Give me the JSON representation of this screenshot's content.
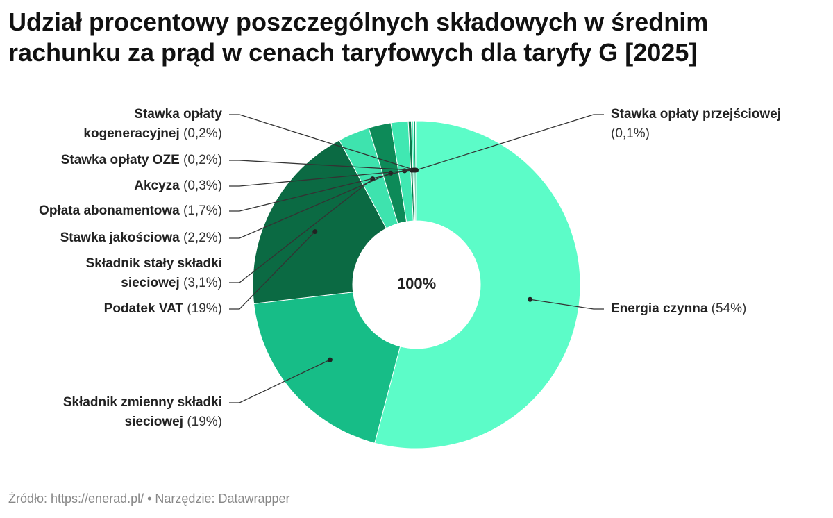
{
  "chart_data": {
    "type": "donut",
    "title": "Udział procentowy poszczególnych składowych w średnim rachunku za prąd w cenach taryfowych dla taryfy G [2025]",
    "center_label": "100%",
    "categories": [
      "Energia czynna",
      "Składnik zmienny składki sieciowej",
      "Podatek VAT",
      "Składnik stały składki sieciowej",
      "Stawka jakościowa",
      "Opłata abonamentowa",
      "Akcyza",
      "Stawka opłaty OZE",
      "Stawka opłaty kogeneracyjnej",
      "Stawka opłaty przejściowej"
    ],
    "values": [
      54,
      19,
      19,
      3.1,
      2.2,
      1.7,
      0.3,
      0.2,
      0.2,
      0.1
    ],
    "value_labels": [
      "(54%)",
      "(19%)",
      "(19%)",
      "(3,1%)",
      "(2,2%)",
      "(1,7%)",
      "(0,3%)",
      "(0,2%)",
      "(0,2%)",
      "(0,1%)"
    ],
    "colors": [
      "#5cfcc8",
      "#17bd87",
      "#0b6a43",
      "#3ee3ae",
      "#0d8a58",
      "#40e8b2",
      "#0a7a4d",
      "#5cf5c3",
      "#13a571",
      "#7ff7d0"
    ],
    "source": "Źródło: https://enerad.pl/ • Narzędzie: Datawrapper"
  }
}
